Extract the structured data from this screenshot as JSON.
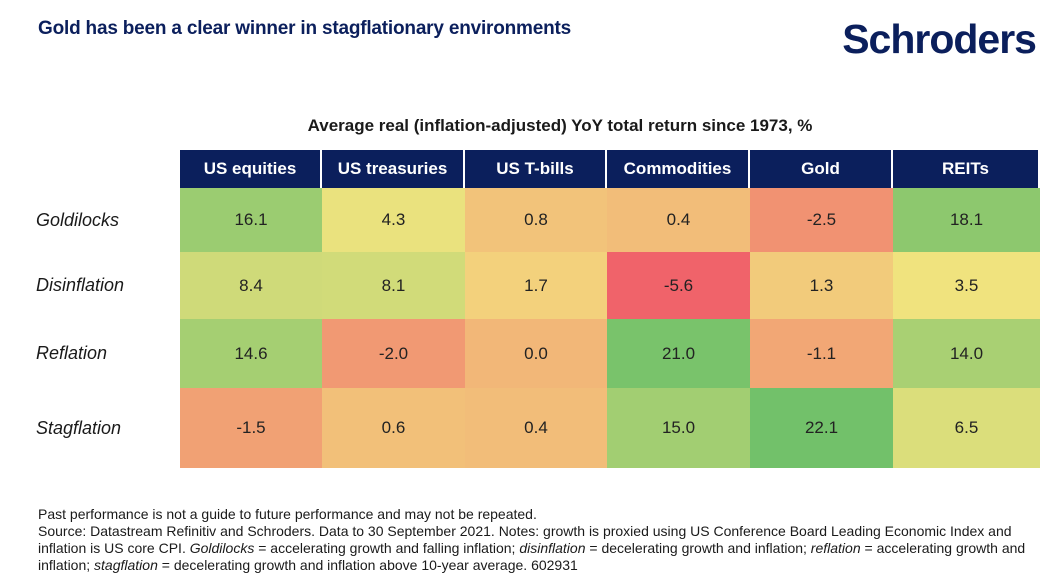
{
  "header": {
    "headline": "Gold has been a clear winner in stagflationary environments",
    "logo_text": "Schroders"
  },
  "chart_data": {
    "type": "heatmap",
    "title": "Average real (inflation-adjusted) YoY total return since 1973, %",
    "columns": [
      "US equities",
      "US treasuries",
      "US T-bills",
      "Commodities",
      "Gold",
      "REITs"
    ],
    "rows": [
      "Goldilocks",
      "Disinflation",
      "Reflation",
      "Stagflation"
    ],
    "values": [
      [
        16.1,
        4.3,
        0.8,
        0.4,
        -2.5,
        18.1
      ],
      [
        8.4,
        8.1,
        1.7,
        -5.6,
        1.3,
        3.5
      ],
      [
        14.6,
        -2.0,
        0.0,
        21.0,
        -1.1,
        14.0
      ],
      [
        -1.5,
        0.6,
        0.4,
        15.0,
        22.1,
        6.5
      ]
    ],
    "value_labels": [
      [
        "16.1",
        "4.3",
        "0.8",
        "0.4",
        "-2.5",
        "18.1"
      ],
      [
        "8.4",
        "8.1",
        "1.7",
        "-5.6",
        "1.3",
        "3.5"
      ],
      [
        "14.6",
        "-2.0",
        "0.0",
        "21.0",
        "-1.1",
        "14.0"
      ],
      [
        "-1.5",
        "0.6",
        "0.4",
        "15.0",
        "22.1",
        "6.5"
      ]
    ],
    "color_scale": {
      "low": "#f0636a",
      "mid": "#f3e47f",
      "high": "#72c16a"
    }
  },
  "footer": {
    "disclaimer": "Past performance is not a guide to future performance and may not be repeated.",
    "source_prefix": "Source: Datastream Refinitiv and Schroders. Data to 30 September 2021. Notes: growth is proxied using US Conference Board Leading Economic Index and inflation is US core CPI. ",
    "term_goldilocks": "Goldilocks",
    "def_goldilocks": " = accelerating growth and falling inflation; ",
    "term_disinflation": "disinflation",
    "def_disinflation": " = decelerating growth and inflation; ",
    "term_reflation": "reflation",
    "def_reflation": " = accelerating growth and inflation; ",
    "term_stagflation": "stagflation",
    "def_stagflation": " = decelerating growth and inflation above 10-year average. 602931"
  }
}
